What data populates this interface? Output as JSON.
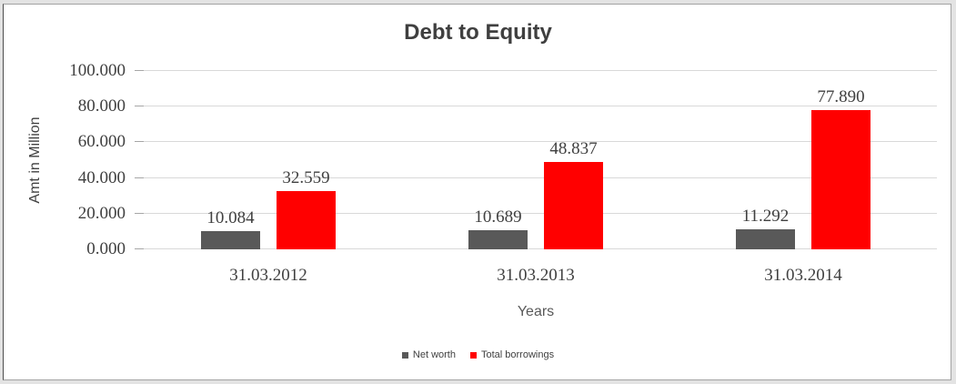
{
  "chart_data": {
    "type": "bar",
    "title": "Debt to Equity",
    "xlabel": "Years",
    "ylabel": "Amt in Million",
    "categories": [
      "31.03.2012",
      "31.03.2013",
      "31.03.2014"
    ],
    "series": [
      {
        "name": "Net worth",
        "color": "#595959",
        "values": [
          10.084,
          10.689,
          11.292
        ],
        "data_labels": [
          "10.084",
          "10.689",
          "11.292"
        ]
      },
      {
        "name": "Total borrowings",
        "color": "#ff0000",
        "values": [
          32.559,
          48.837,
          77.89
        ],
        "data_labels": [
          "32.559",
          "48.837",
          "77.890"
        ]
      }
    ],
    "ylim": [
      0,
      100
    ],
    "y_tick_values": [
      0,
      20,
      40,
      60,
      80,
      100
    ],
    "y_tick_labels": [
      "0.000",
      "20.000",
      "40.000",
      "60.000",
      "80.000",
      "100.000"
    ],
    "grid": true,
    "legend_position": "bottom-center",
    "colors": {
      "grid_line": "#d9d9d9",
      "tick_mark": "#a6a6a6",
      "axis_text": "#404040",
      "title_text": "#3f3f3f",
      "axis_title_text": "#595959",
      "frame_border": "#a3a3a3",
      "outer_background": "#e3e3e3"
    }
  }
}
